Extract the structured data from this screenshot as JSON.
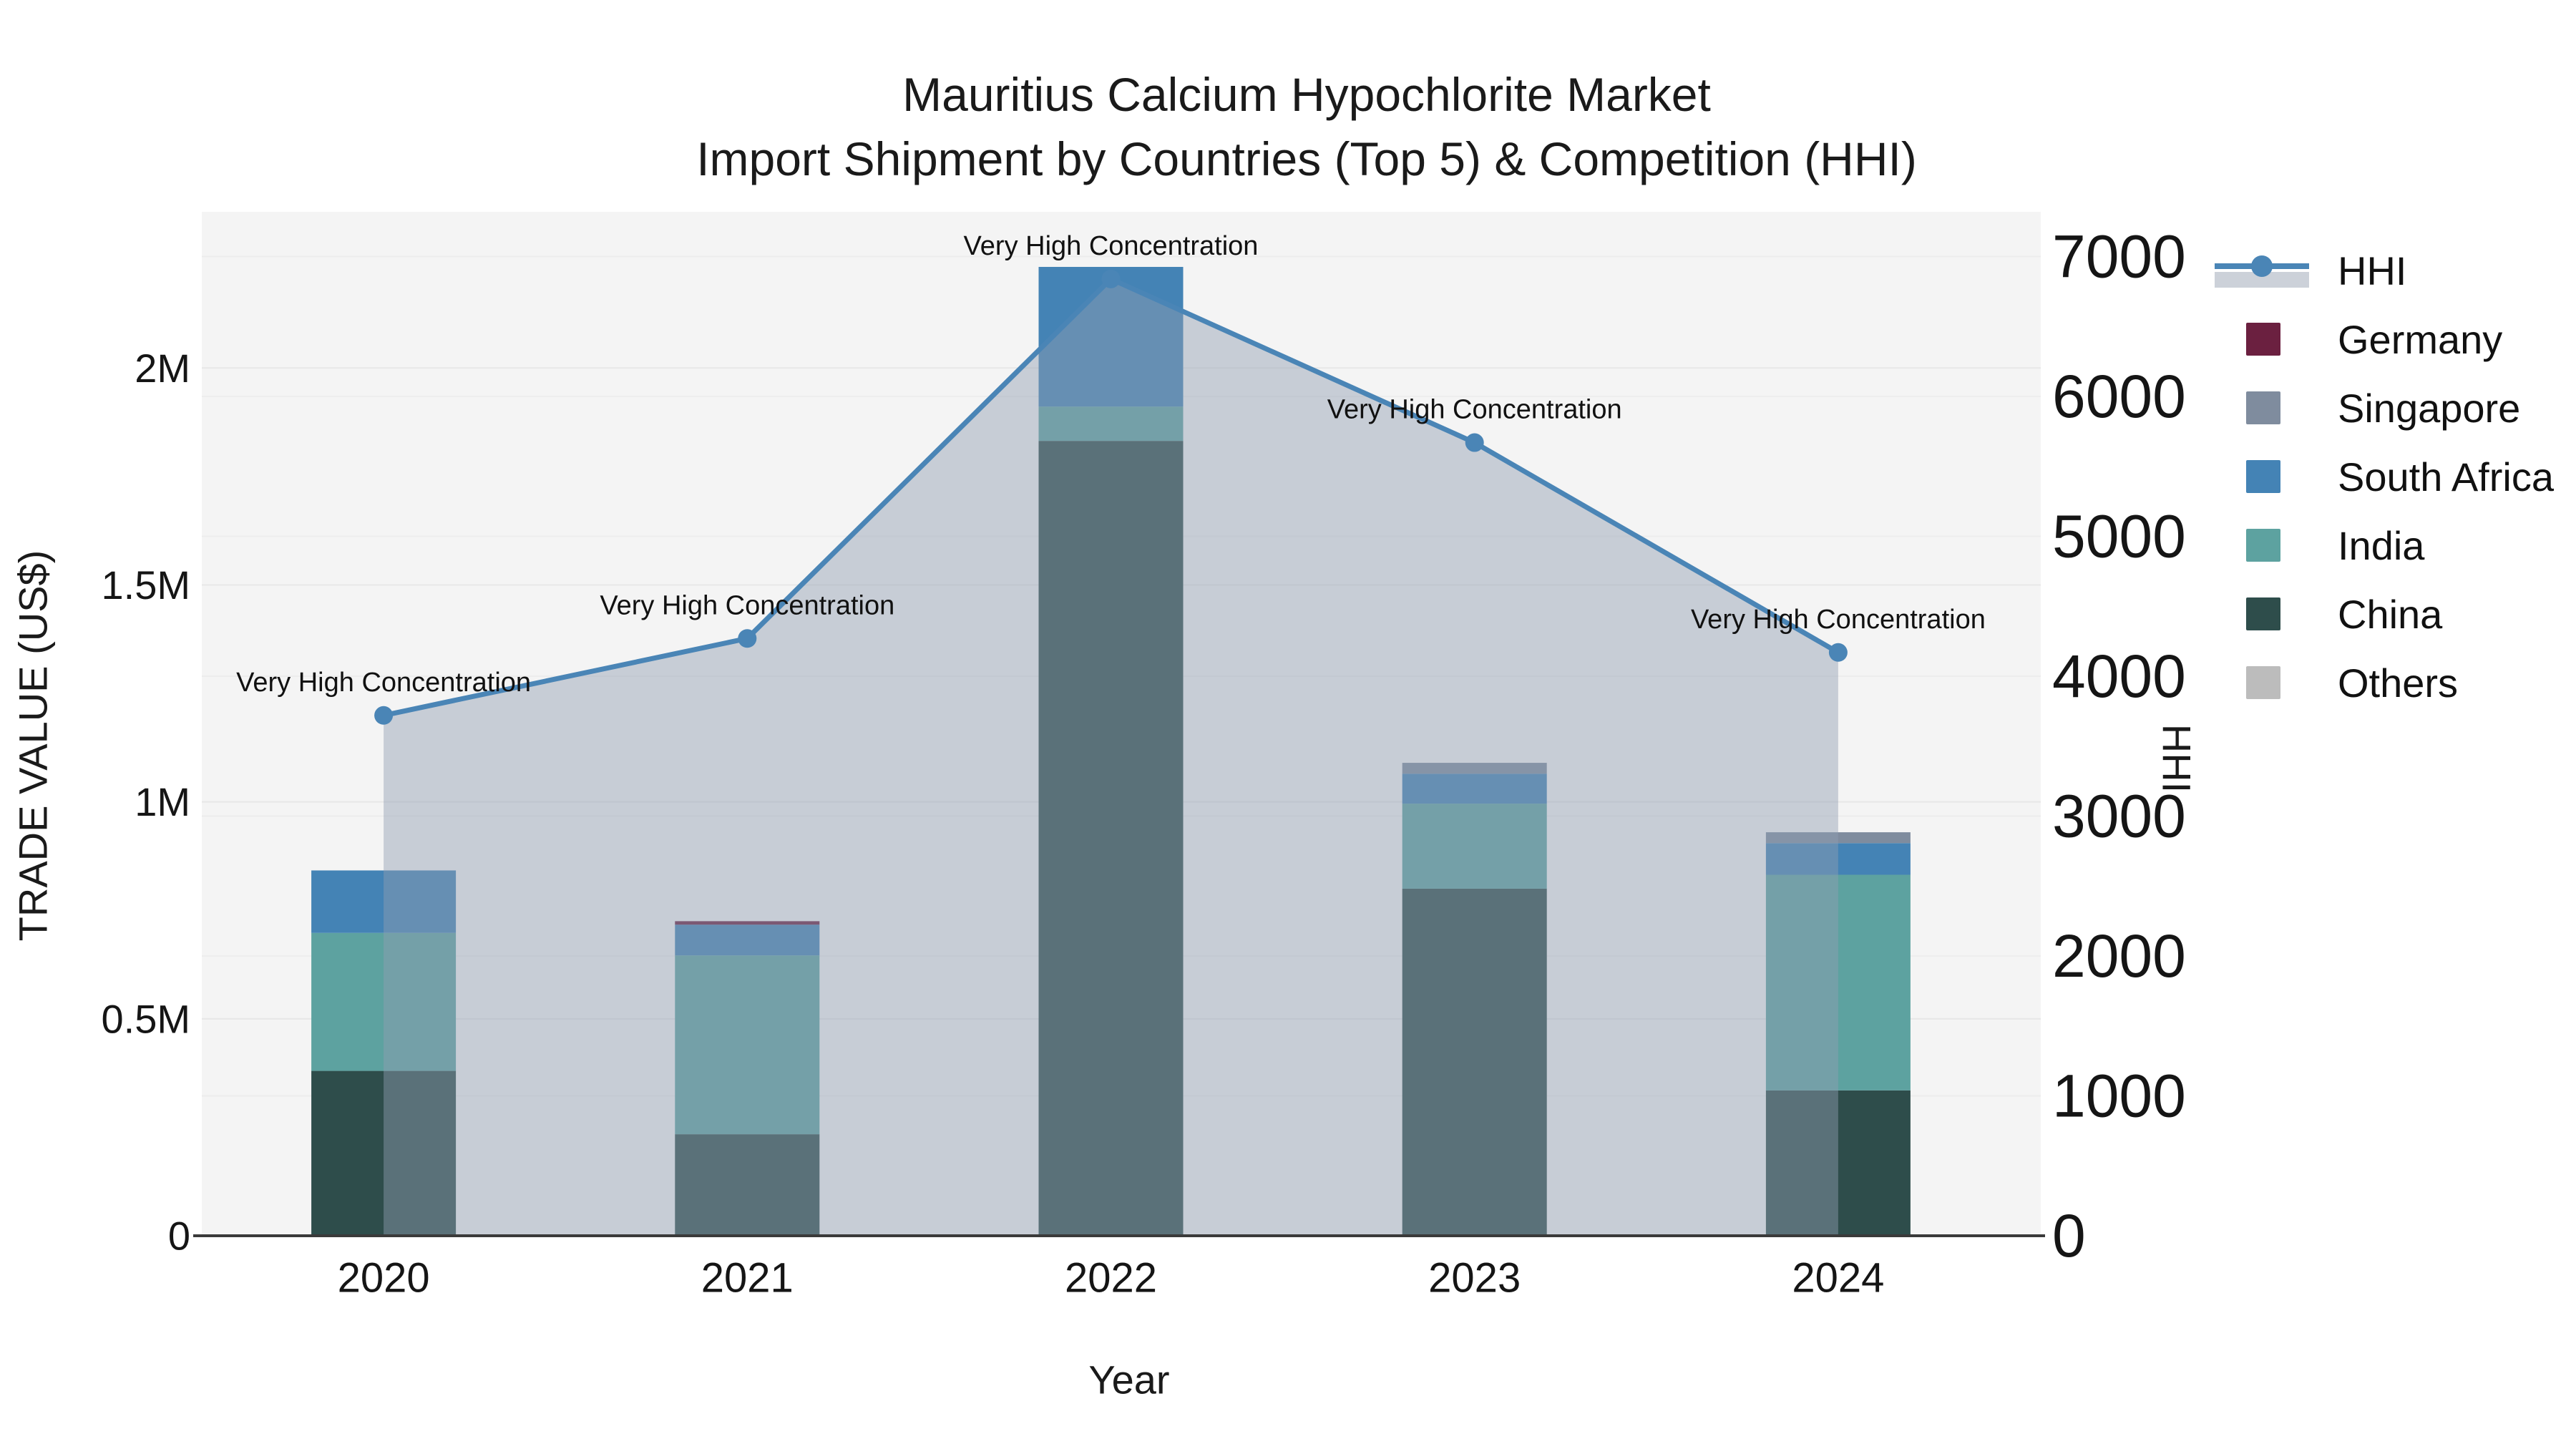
{
  "title": {
    "line1": "Mauritius Calcium Hypochlorite Market",
    "line2": "Import Shipment by Countries (Top 5) & Competition (HHI)"
  },
  "axes": {
    "left": {
      "title": "TRADE VALUE (US$)",
      "tick_labels": [
        "0",
        "0.5M",
        "1M",
        "1.5M",
        "2M"
      ],
      "tick_values": [
        0,
        500000,
        1000000,
        1500000,
        2000000
      ],
      "max": 2360000
    },
    "right": {
      "title": "HHI",
      "tick_labels": [
        "0",
        "1000",
        "2000",
        "3000",
        "4000",
        "5000",
        "6000",
        "7000"
      ],
      "tick_values": [
        0,
        1000,
        2000,
        3000,
        4000,
        5000,
        6000,
        7000
      ],
      "max": 7320
    },
    "x": {
      "title": "Year"
    }
  },
  "legend": {
    "entries": [
      {
        "label": "HHI",
        "type": "line",
        "color": "#4a85b6"
      },
      {
        "label": "Germany",
        "type": "box",
        "color": "#6b2040"
      },
      {
        "label": "Singapore",
        "type": "box",
        "color": "#7f8c9e"
      },
      {
        "label": "South Africa",
        "type": "box",
        "color": "#4483b5"
      },
      {
        "label": "India",
        "type": "box",
        "color": "#5da2a0"
      },
      {
        "label": "China",
        "type": "box",
        "color": "#2e4d4b"
      },
      {
        "label": "Others",
        "type": "box",
        "color": "#bcbcbc"
      }
    ]
  },
  "chart_data": {
    "type": "bar+line",
    "categories": [
      "2020",
      "2021",
      "2022",
      "2023",
      "2024"
    ],
    "bar_stack_order_note": "bottom to top",
    "series": [
      {
        "name": "China",
        "axis": "left",
        "color": "#2e4d4b",
        "values": [
          380000,
          234000,
          1832000,
          800000,
          335000
        ]
      },
      {
        "name": "India",
        "axis": "left",
        "color": "#5da2a0",
        "values": [
          318000,
          412000,
          79000,
          196000,
          497000
        ]
      },
      {
        "name": "South Africa",
        "axis": "left",
        "color": "#4483b5",
        "values": [
          144000,
          71000,
          322000,
          69000,
          73000
        ]
      },
      {
        "name": "Singapore",
        "axis": "left",
        "color": "#7f8c9e",
        "values": [
          0,
          0,
          0,
          25000,
          25000
        ]
      },
      {
        "name": "Germany",
        "axis": "left",
        "color": "#6b2040",
        "values": [
          0,
          8000,
          0,
          0,
          0
        ]
      },
      {
        "name": "Others",
        "axis": "left",
        "color": "#bcbcbc",
        "values": [
          0,
          0,
          0,
          0,
          0
        ]
      }
    ],
    "line_series": {
      "name": "HHI",
      "axis": "right",
      "color": "#4a85b6",
      "area_fill": "rgba(144,158,178,0.45)",
      "values": [
        3720,
        4270,
        6840,
        5670,
        4170
      ],
      "point_annotation": "Very High Concentration"
    },
    "title": "Mauritius Calcium Hypochlorite Market — Import Shipment by Countries (Top 5) & Competition (HHI)",
    "xlabel": "Year",
    "ylabel_left": "TRADE VALUE (US$)",
    "ylabel_right": "HHI",
    "ylim_left": [
      0,
      2360000
    ],
    "ylim_right": [
      0,
      7320
    ],
    "grid": true,
    "legend_position": "right"
  },
  "style": {
    "plot_bg": "#f4f4f4",
    "grid_color": "#e7e7e7",
    "grid_color_right": "#ededed",
    "axis_line_color": "#3a3a3a",
    "tick_color": "#151515",
    "annotation_color": "#111111",
    "legend_band_color": "#ccd1d9"
  }
}
